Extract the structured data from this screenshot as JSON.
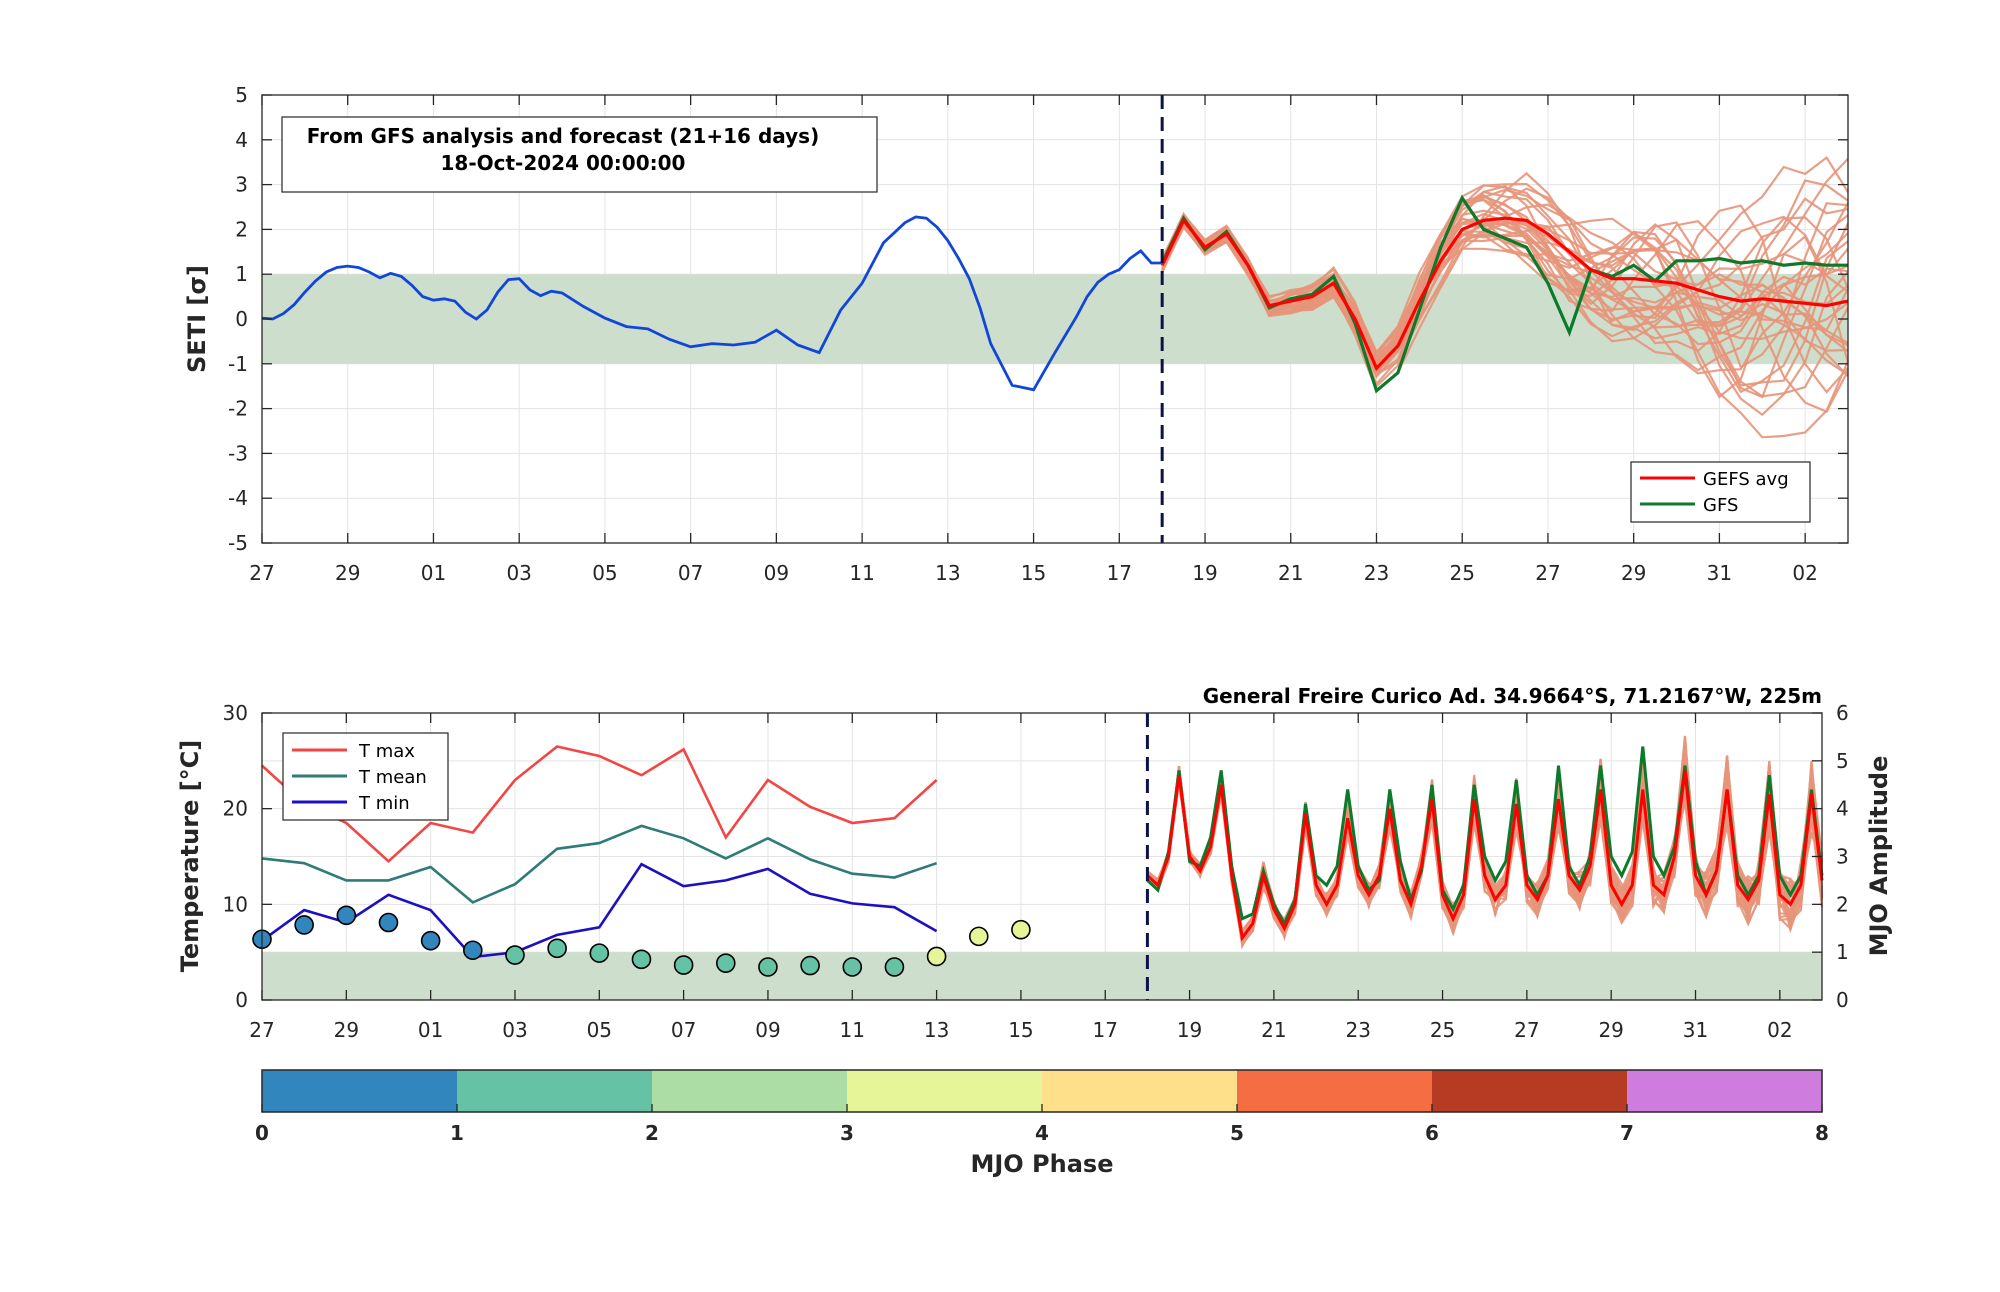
{
  "colors": {
    "band": "#cddfcc",
    "analysis_line": "#1246d8",
    "ensemble_member": "#e6957a",
    "gefs_avg": "#ff0000",
    "gfs": "#0c7a2b",
    "t_max": "#f44545",
    "t_mean": "#2e7b78",
    "t_min": "#1d0fc2",
    "forecast_divider": "#0d1247",
    "mjo_phase_colors": [
      "#3186bd",
      "#66c2a5",
      "#abdda4",
      "#e6f598",
      "#fee08b",
      "#f46d43",
      "#b73b22",
      "#ce7ddf"
    ]
  },
  "top_panel": {
    "note_line1": "From GFS analysis and forecast (21+16 days)",
    "note_line2": "18-Oct-2024 00:00:00",
    "ylabel": "SETI [σ]",
    "legend": [
      {
        "label": "GEFS avg",
        "color_key": "gefs_avg"
      },
      {
        "label": "GFS",
        "color_key": "gfs"
      }
    ]
  },
  "bottom_panel": {
    "station": "General Freire Curico Ad. 34.9664°S, 71.2167°W, 225m",
    "ylabel_left": "Temperature [°C]",
    "ylabel_right": "MJO Amplitude",
    "legend": [
      {
        "label": "T max",
        "color_key": "t_max"
      },
      {
        "label": "T mean",
        "color_key": "t_mean"
      },
      {
        "label": "T min",
        "color_key": "t_min"
      }
    ]
  },
  "colorbar": {
    "label": "MJO Phase",
    "ticks": [
      "0",
      "1",
      "2",
      "3",
      "4",
      "5",
      "6",
      "7",
      "8"
    ]
  },
  "chart_data": [
    {
      "type": "line",
      "title": "From GFS analysis and forecast (21+16 days)",
      "ylabel": "SETI [σ]",
      "x_unit": "day index (0 = 27 Sep 2024, 21 = 18 Oct 2024)",
      "xlim": [
        0,
        37
      ],
      "ylim": [
        -5,
        5
      ],
      "x_ticks": [
        0,
        2,
        4,
        6,
        8,
        10,
        12,
        14,
        16,
        18,
        20,
        22,
        24,
        26,
        28,
        30,
        32,
        34,
        36
      ],
      "x_tick_labels": [
        "27",
        "29",
        "01",
        "03",
        "05",
        "07",
        "09",
        "11",
        "13",
        "15",
        "17",
        "19",
        "21",
        "23",
        "25",
        "27",
        "29",
        "31",
        "02"
      ],
      "y_ticks": [
        -5,
        -4,
        -3,
        -2,
        -1,
        0,
        1,
        2,
        3,
        4,
        5
      ],
      "band": [
        -1,
        1
      ],
      "forecast_start_x": 21,
      "series": [
        {
          "name": "analysis",
          "color_key": "analysis_line",
          "x": [
            0,
            0.25,
            0.5,
            0.75,
            1,
            1.25,
            1.5,
            1.75,
            2,
            2.25,
            2.5,
            2.75,
            3,
            3.25,
            3.5,
            3.75,
            4,
            4.25,
            4.5,
            4.75,
            5,
            5.25,
            5.5,
            5.75,
            6,
            6.25,
            6.5,
            6.75,
            7,
            7.5,
            8,
            8.5,
            9,
            9.5,
            10,
            10.5,
            11,
            11.5,
            12,
            12.5,
            13,
            13.5,
            14,
            14.5,
            15,
            15.25,
            15.5,
            15.75,
            16,
            16.25,
            16.5,
            16.75,
            17,
            17.5,
            18,
            18.5,
            19,
            19.25,
            19.5,
            19.75,
            20,
            20.25,
            20.5,
            20.75,
            21
          ],
          "y": [
            0.02,
            0.0,
            0.12,
            0.32,
            0.6,
            0.85,
            1.05,
            1.15,
            1.18,
            1.15,
            1.05,
            0.92,
            1.02,
            0.95,
            0.75,
            0.5,
            0.42,
            0.45,
            0.4,
            0.15,
            0.0,
            0.2,
            0.6,
            0.88,
            0.9,
            0.65,
            0.52,
            0.62,
            0.58,
            0.28,
            0.02,
            -0.17,
            -0.22,
            -0.45,
            -0.62,
            -0.55,
            -0.58,
            -0.52,
            -0.25,
            -0.58,
            -0.75,
            0.2,
            0.8,
            1.7,
            2.15,
            2.28,
            2.25,
            2.05,
            1.75,
            1.35,
            0.9,
            0.25,
            -0.55,
            -1.48,
            -1.58,
            -0.75,
            0.05,
            0.5,
            0.82,
            1.0,
            1.1,
            1.35,
            1.52,
            1.25,
            1.25
          ]
        },
        {
          "name": "GEFS avg",
          "color_key": "gefs_avg",
          "x": [
            21,
            21.5,
            22,
            22.5,
            23,
            23.5,
            24,
            24.5,
            25,
            25.5,
            26,
            26.5,
            27,
            27.5,
            28,
            28.5,
            29,
            29.5,
            30,
            30.5,
            31,
            31.5,
            32,
            32.5,
            33,
            33.5,
            34,
            34.5,
            35,
            35.5,
            36,
            36.5,
            37
          ],
          "y": [
            1.2,
            2.2,
            1.6,
            1.9,
            1.2,
            0.3,
            0.4,
            0.5,
            0.8,
            0.0,
            -1.1,
            -0.6,
            0.4,
            1.3,
            2.0,
            2.2,
            2.25,
            2.2,
            1.9,
            1.5,
            1.1,
            0.9,
            0.9,
            0.85,
            0.8,
            0.65,
            0.5,
            0.4,
            0.45,
            0.4,
            0.35,
            0.3,
            0.4
          ]
        },
        {
          "name": "GFS",
          "color_key": "gfs",
          "x": [
            21,
            21.5,
            22,
            22.5,
            23,
            23.5,
            24,
            24.5,
            25,
            25.5,
            26,
            26.5,
            27,
            27.5,
            28,
            28.5,
            29,
            29.5,
            30,
            30.5,
            31,
            31.5,
            32,
            32.5,
            33,
            33.5,
            34,
            34.5,
            35,
            35.5,
            36,
            36.5,
            37
          ],
          "y": [
            1.25,
            2.25,
            1.55,
            1.95,
            1.2,
            0.25,
            0.45,
            0.55,
            0.95,
            -0.1,
            -1.6,
            -1.2,
            0.2,
            1.6,
            2.7,
            2.0,
            1.8,
            1.6,
            0.8,
            -0.3,
            1.1,
            0.95,
            1.2,
            0.85,
            1.3,
            1.3,
            1.35,
            1.25,
            1.3,
            1.2,
            1.25,
            1.2,
            1.2
          ]
        }
      ]
    },
    {
      "type": "line",
      "title": "General Freire Curico Ad. 34.9664°S, 71.2167°W, 225m",
      "ylabel": "Temperature [°C]",
      "y2label": "MJO Amplitude",
      "xlim": [
        0,
        37
      ],
      "ylim": [
        0,
        30
      ],
      "y2lim": [
        0,
        6
      ],
      "y_ticks": [
        0,
        10,
        20,
        30
      ],
      "y2_ticks": [
        0,
        1,
        2,
        3,
        4,
        5,
        6
      ],
      "band_y2": [
        0,
        1
      ],
      "forecast_start_x": 21,
      "series": [
        {
          "name": "T max",
          "color_key": "t_max",
          "x": [
            0,
            1,
            2,
            3,
            4,
            5,
            6,
            7,
            8,
            9,
            10,
            11,
            12,
            13,
            14,
            15,
            16
          ],
          "y": [
            24.5,
            20.5,
            18.5,
            14.5,
            18.5,
            17.5,
            23,
            26.5,
            25.5,
            23.5,
            26.2,
            17,
            23,
            20.2,
            18.5,
            19,
            23
          ]
        },
        {
          "name": "T mean",
          "color_key": "t_mean",
          "x": [
            0,
            1,
            2,
            3,
            4,
            5,
            6,
            7,
            8,
            9,
            10,
            11,
            12,
            13,
            14,
            15,
            16
          ],
          "y": [
            14.8,
            14.3,
            12.5,
            12.5,
            13.9,
            10.2,
            12.1,
            15.8,
            16.4,
            18.2,
            16.9,
            14.8,
            16.9,
            14.7,
            13.2,
            12.8,
            14.3
          ]
        },
        {
          "name": "T min",
          "color_key": "t_min",
          "x": [
            0,
            1,
            2,
            3,
            4,
            5,
            6,
            7,
            8,
            9,
            10,
            11,
            12,
            13,
            14,
            15,
            16
          ],
          "y": [
            6.2,
            9.4,
            8.1,
            11.0,
            9.4,
            4.5,
            5.0,
            6.8,
            7.6,
            14.2,
            11.9,
            12.5,
            13.7,
            11.1,
            10.1,
            9.7,
            7.2
          ]
        },
        {
          "name": "MJO phase/amplitude",
          "axis": "y2",
          "x": [
            0,
            1,
            2,
            3,
            4,
            5,
            6,
            7,
            8,
            9,
            10,
            11,
            12,
            13,
            14,
            15,
            16,
            17,
            18
          ],
          "amplitude": [
            1.27,
            1.57,
            1.77,
            1.62,
            1.24,
            1.04,
            0.94,
            1.08,
            0.98,
            0.85,
            0.73,
            0.77,
            0.69,
            0.72,
            0.69,
            0.69,
            0.91,
            1.33,
            1.47
          ],
          "phase": [
            0.4,
            0.5,
            0.5,
            0.6,
            0.5,
            0.6,
            1.3,
            1.3,
            1.6,
            1.6,
            1.6,
            1.4,
            1.6,
            1.7,
            1.8,
            1.8,
            3.3,
            3.3,
            3.4
          ]
        },
        {
          "name": "GEFS avg",
          "color_key": "gefs_avg",
          "x": [
            21,
            21.25,
            21.5,
            21.75,
            22,
            22.25,
            22.5,
            22.75,
            23,
            23.25,
            23.5,
            23.75,
            24,
            24.25,
            24.5,
            24.75,
            25,
            25.25,
            25.5,
            25.75,
            26,
            26.25,
            26.5,
            26.75,
            27,
            27.25,
            27.5,
            27.75,
            28,
            28.25,
            28.5,
            28.75,
            29,
            29.25,
            29.5,
            29.75,
            30,
            30.25,
            30.5,
            30.75,
            31,
            31.25,
            31.5,
            31.75,
            32,
            32.25,
            32.5,
            32.75,
            33,
            33.25,
            33.5,
            33.75,
            34,
            34.25,
            34.5,
            34.75,
            35,
            35.25,
            35.5,
            35.75,
            36,
            36.25,
            36.5,
            36.75,
            37
          ],
          "y": [
            13,
            12,
            15,
            23.5,
            15,
            13.5,
            16,
            22.5,
            13,
            6.5,
            8,
            13,
            9.5,
            7.5,
            10,
            19.5,
            12,
            10,
            12,
            19,
            13,
            11,
            13,
            20,
            12.5,
            10,
            14,
            21,
            11,
            8.5,
            11,
            21,
            13,
            10.5,
            12,
            20.5,
            12,
            10.5,
            13,
            21,
            13,
            11.5,
            14,
            22,
            12,
            10,
            12,
            22,
            12,
            11,
            15,
            24,
            13,
            11,
            13.5,
            22,
            12,
            10.5,
            12.5,
            21.5,
            11,
            10,
            12,
            21.5,
            12.5
          ]
        },
        {
          "name": "GFS",
          "color_key": "gfs",
          "x": [
            21,
            21.25,
            21.5,
            21.75,
            22,
            22.25,
            22.5,
            22.75,
            23,
            23.25,
            23.5,
            23.75,
            24,
            24.25,
            24.5,
            24.75,
            25,
            25.25,
            25.5,
            25.75,
            26,
            26.25,
            26.5,
            26.75,
            27,
            27.25,
            27.5,
            27.75,
            28,
            28.25,
            28.5,
            28.75,
            29,
            29.25,
            29.5,
            29.75,
            30,
            30.25,
            30.5,
            30.75,
            31,
            31.25,
            31.5,
            31.75,
            32,
            32.25,
            32.5,
            32.75,
            33,
            33.25,
            33.5,
            33.75,
            34,
            34.25,
            34.5,
            34.75,
            35,
            35.25,
            35.5,
            35.75,
            36,
            36.25,
            36.5,
            36.75,
            37
          ],
          "y": [
            12.5,
            11.5,
            15.5,
            24,
            14.5,
            14,
            17,
            24,
            14,
            8.5,
            9,
            13.5,
            10,
            8,
            10.5,
            20.5,
            13,
            12,
            14,
            22,
            14,
            11.5,
            12.5,
            22,
            14.5,
            10.5,
            13.5,
            22.5,
            11.5,
            9.5,
            12,
            22.5,
            15,
            12.5,
            14.5,
            23,
            13,
            11,
            13,
            24.5,
            14,
            12,
            15,
            24.5,
            15,
            13,
            15.5,
            26.5,
            15,
            13,
            16,
            24.5,
            14.5,
            11,
            13.5,
            22,
            13,
            11,
            13,
            23.5,
            13,
            11,
            13,
            22,
            13
          ]
        }
      ]
    }
  ]
}
